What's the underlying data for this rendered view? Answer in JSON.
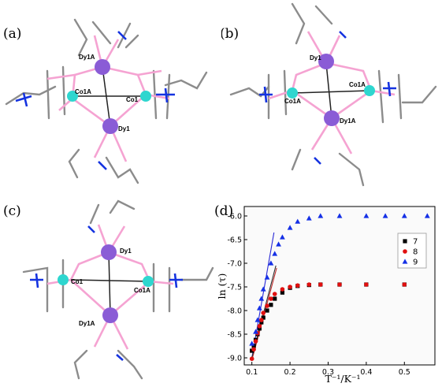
{
  "panels": {
    "a": {
      "label": "(a)",
      "atoms": [
        "Dy1A",
        "Co1A",
        "Co1",
        "Dy1"
      ]
    },
    "b": {
      "label": "(b)",
      "atoms": [
        "Dy1",
        "Co1A",
        "Co1A",
        "Dy1A"
      ]
    },
    "c": {
      "label": "(c)",
      "atoms": [
        "Dy1",
        "Co1",
        "Co1A",
        "Dy1A"
      ]
    },
    "d": {
      "label": "(d)"
    }
  },
  "colors": {
    "dy": "#8a5cd6",
    "co": "#2ed6cf",
    "o": "#f5a3d2",
    "c": "#8c8c8c",
    "n": "#1533e0",
    "s7": "#000000",
    "s8": "#e01010",
    "s9": "#1530e6",
    "fit": "#3b3bd0"
  },
  "chart_data": {
    "type": "scatter",
    "xlabel": "T⁻¹/K⁻¹",
    "ylabel": "ln (τ)",
    "xlim": [
      0.08,
      0.58
    ],
    "ylim": [
      -9.15,
      -5.8
    ],
    "xticks": [
      "0.1",
      "0.2",
      "0.3",
      "0.4",
      "0.5"
    ],
    "yticks": [
      "-6.0",
      "-6.5",
      "-7.0",
      "-7.5",
      "-8.0",
      "-8.5",
      "-9.0"
    ],
    "legend_position": "right",
    "series": [
      {
        "name": "7",
        "marker": "square",
        "x": [
          0.1,
          0.105,
          0.11,
          0.115,
          0.12,
          0.125,
          0.13,
          0.14,
          0.15,
          0.16,
          0.18,
          0.2,
          0.22,
          0.25,
          0.28,
          0.33,
          0.4,
          0.5
        ],
        "y": [
          -8.85,
          -8.75,
          -8.62,
          -8.5,
          -8.38,
          -8.25,
          -8.15,
          -8.0,
          -7.88,
          -7.75,
          -7.62,
          -7.52,
          -7.48,
          -7.46,
          -7.45,
          -7.45,
          -7.45,
          -7.45
        ]
      },
      {
        "name": "8",
        "marker": "circle",
        "x": [
          0.1,
          0.105,
          0.11,
          0.115,
          0.12,
          0.125,
          0.13,
          0.14,
          0.15,
          0.16,
          0.18,
          0.2,
          0.22,
          0.25,
          0.28,
          0.33,
          0.4,
          0.5
        ],
        "y": [
          -9.02,
          -8.82,
          -8.65,
          -8.48,
          -8.33,
          -8.2,
          -8.05,
          -7.9,
          -7.75,
          -7.65,
          -7.55,
          -7.5,
          -7.47,
          -7.45,
          -7.45,
          -7.45,
          -7.45,
          -7.45
        ]
      },
      {
        "name": "9",
        "marker": "triangle",
        "x": [
          0.1,
          0.11,
          0.115,
          0.12,
          0.125,
          0.13,
          0.14,
          0.15,
          0.16,
          0.17,
          0.18,
          0.2,
          0.22,
          0.25,
          0.28,
          0.33,
          0.4,
          0.45,
          0.5,
          0.56
        ],
        "y": [
          -8.7,
          -8.45,
          -8.2,
          -7.95,
          -7.75,
          -7.55,
          -7.3,
          -7.0,
          -6.8,
          -6.6,
          -6.45,
          -6.25,
          -6.12,
          -6.05,
          -6.0,
          -6.0,
          -6.0,
          -6.0,
          -6.0,
          -6.0
        ]
      }
    ],
    "fits": [
      {
        "x": [
          0.1,
          0.158
        ],
        "y": [
          -9.0,
          -6.35
        ],
        "color": "#2a2ad6"
      },
      {
        "x": [
          0.1,
          0.165
        ],
        "y": [
          -9.05,
          -7.1
        ],
        "color": "#c03030"
      },
      {
        "x": [
          0.1,
          0.163
        ],
        "y": [
          -9.0,
          -7.05
        ],
        "color": "#303030"
      }
    ]
  }
}
